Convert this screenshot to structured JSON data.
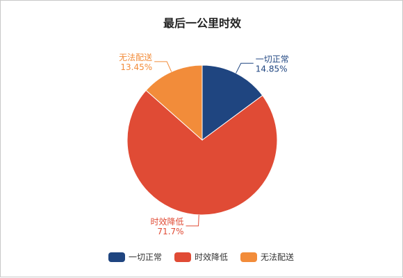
{
  "chart_data": {
    "type": "pie",
    "title": "最后一公里时效",
    "categories": [
      "一切正常",
      "时效降低",
      "无法配送"
    ],
    "values": [
      14.85,
      71.7,
      13.45
    ],
    "value_labels": [
      "14.85%",
      "71.7%",
      "13.45%"
    ],
    "colors": [
      "#1f4580",
      "#e04b35",
      "#f28c3a"
    ],
    "legend": {
      "position": "bottom-center",
      "entries": [
        "一切正常",
        "时效降低",
        "无法配送"
      ]
    }
  }
}
